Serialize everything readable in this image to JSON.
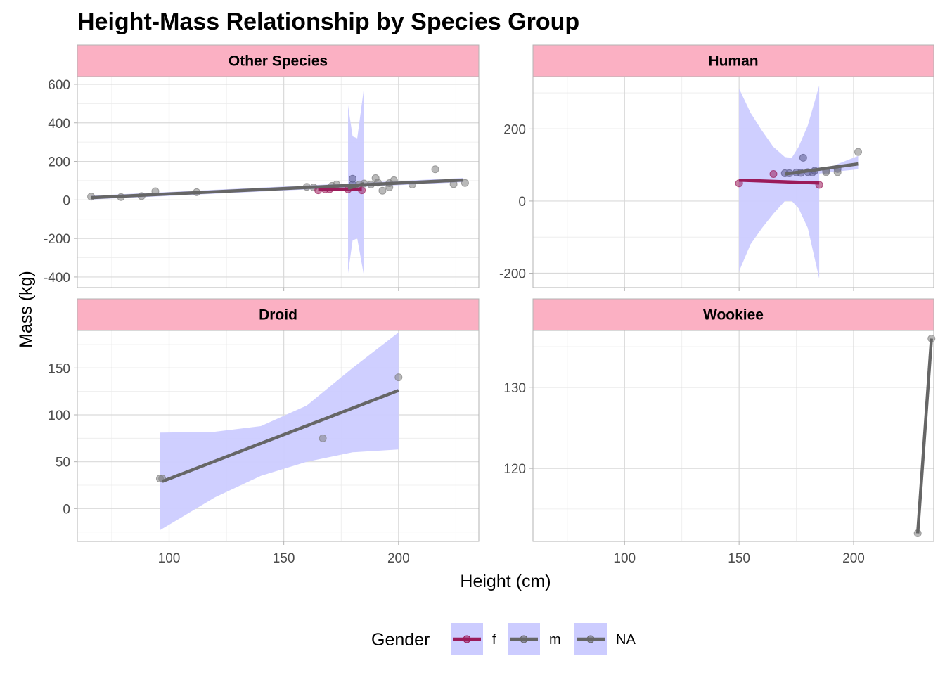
{
  "chart_data": {
    "type": "scatter",
    "title": "Height-Mass Relationship by Species Group",
    "xlabel": "Height (cm)",
    "ylabel": "Mass (kg)",
    "grid": true,
    "legend": {
      "title": "Gender",
      "position": "bottom",
      "entries": [
        {
          "label": "f",
          "color": "#9B1B5A"
        },
        {
          "label": "m",
          "color": "#666666"
        },
        {
          "label": "NA",
          "color": "#666666"
        }
      ],
      "ribbon_color": "#CCCCFF"
    },
    "colors": {
      "f": "#9B1B5A",
      "m": "#666666",
      "NA": "#666666",
      "ribbon": "#CCCCFF",
      "strip": "#FBB0C3",
      "points_f": "#9B1B5A",
      "points_m": "#5A5A8A",
      "points_NA": "#808080"
    },
    "shared_x": {
      "range": [
        60,
        235
      ],
      "ticks": [
        100,
        150,
        200
      ]
    },
    "panels": [
      {
        "name": "Other Species",
        "ylim": [
          -455,
          640
        ],
        "yticks": [
          -400,
          -200,
          0,
          200,
          400,
          600
        ],
        "series": [
          {
            "gender": "m",
            "line": {
              "x": [
                66,
                228
              ],
              "y": [
                12,
                103
              ]
            },
            "ribbon": {
              "x": [
                66,
                228
              ],
              "lower": [
                2,
                92
              ],
              "upper": [
                22,
                114
              ]
            }
          },
          {
            "gender": "f",
            "line": {
              "x": [
                165,
                184
              ],
              "y": [
                55,
                56
              ]
            },
            "ribbon": {
              "x": [
                178,
                180,
                182,
                185
              ],
              "lower": [
                -380,
                -210,
                -200,
                -400
              ],
              "upper": [
                490,
                330,
                320,
                590
              ]
            }
          },
          {
            "gender": "NA",
            "line": {
              "x": [
                178,
                185
              ],
              "y": [
                60,
                84
              ]
            }
          }
        ],
        "points": [
          {
            "x": 66,
            "y": 17,
            "g": "NA"
          },
          {
            "x": 79,
            "y": 15,
            "g": "NA"
          },
          {
            "x": 88,
            "y": 20,
            "g": "NA"
          },
          {
            "x": 94,
            "y": 45,
            "g": "NA"
          },
          {
            "x": 112,
            "y": 40,
            "g": "NA"
          },
          {
            "x": 160,
            "y": 68,
            "g": "NA"
          },
          {
            "x": 163,
            "y": 65,
            "g": "NA"
          },
          {
            "x": 165,
            "y": 50,
            "g": "f"
          },
          {
            "x": 168,
            "y": 55,
            "g": "f"
          },
          {
            "x": 170,
            "y": 56,
            "g": "f"
          },
          {
            "x": 171,
            "y": 73,
            "g": "NA"
          },
          {
            "x": 173,
            "y": 80,
            "g": "NA"
          },
          {
            "x": 178,
            "y": 55,
            "g": "f"
          },
          {
            "x": 180,
            "y": 110,
            "g": "m"
          },
          {
            "x": 180,
            "y": 80,
            "g": "m"
          },
          {
            "x": 183,
            "y": 80,
            "g": "NA"
          },
          {
            "x": 184,
            "y": 50,
            "g": "f"
          },
          {
            "x": 185,
            "y": 85,
            "g": "NA"
          },
          {
            "x": 188,
            "y": 80,
            "g": "NA"
          },
          {
            "x": 190,
            "y": 113,
            "g": "NA"
          },
          {
            "x": 191,
            "y": 90,
            "g": "NA"
          },
          {
            "x": 193,
            "y": 48,
            "g": "NA"
          },
          {
            "x": 196,
            "y": 66,
            "g": "NA"
          },
          {
            "x": 196,
            "y": 87,
            "g": "NA"
          },
          {
            "x": 198,
            "y": 102,
            "g": "NA"
          },
          {
            "x": 206,
            "y": 80,
            "g": "NA"
          },
          {
            "x": 216,
            "y": 159,
            "g": "NA"
          },
          {
            "x": 224,
            "y": 82,
            "g": "NA"
          },
          {
            "x": 229,
            "y": 88,
            "g": "NA"
          }
        ]
      },
      {
        "name": "Human",
        "ylim": [
          -240,
          345
        ],
        "yticks": [
          -200,
          0,
          200
        ],
        "series": [
          {
            "gender": "f",
            "line": {
              "x": [
                150,
                185
              ],
              "y": [
                58,
                50
              ]
            },
            "ribbon": {
              "x": [
                150,
                155,
                160,
                165,
                170,
                173,
                176,
                180,
                185
              ],
              "lower": [
                -195,
                -120,
                -75,
                -35,
                0,
                0,
                -20,
                -75,
                -215
              ],
              "upper": [
                312,
                245,
                195,
                150,
                122,
                120,
                150,
                210,
                320
              ]
            }
          },
          {
            "gender": "m",
            "line": {
              "x": [
                170,
                202
              ],
              "y": [
                75,
                103
              ]
            },
            "ribbon": {
              "x": [
                170,
                180,
                190,
                202
              ],
              "lower": [
                70,
                72,
                80,
                88
              ],
              "upper": [
                80,
                82,
                95,
                125
              ]
            }
          }
        ],
        "points": [
          {
            "x": 150,
            "y": 49,
            "g": "f"
          },
          {
            "x": 165,
            "y": 75,
            "g": "f"
          },
          {
            "x": 170,
            "y": 77,
            "g": "m"
          },
          {
            "x": 172,
            "y": 77,
            "g": "m"
          },
          {
            "x": 175,
            "y": 79,
            "g": "m"
          },
          {
            "x": 177,
            "y": 78,
            "g": "m"
          },
          {
            "x": 178,
            "y": 120,
            "g": "m"
          },
          {
            "x": 180,
            "y": 80,
            "g": "m"
          },
          {
            "x": 182,
            "y": 79,
            "g": "m"
          },
          {
            "x": 183,
            "y": 84,
            "g": "m"
          },
          {
            "x": 185,
            "y": 45,
            "g": "f"
          },
          {
            "x": 188,
            "y": 84,
            "g": "m"
          },
          {
            "x": 188,
            "y": 80,
            "g": "NA"
          },
          {
            "x": 193,
            "y": 89,
            "g": "m"
          },
          {
            "x": 193,
            "y": 80,
            "g": "NA"
          },
          {
            "x": 202,
            "y": 136,
            "g": "NA"
          }
        ]
      },
      {
        "name": "Droid",
        "ylim": [
          -35,
          190
        ],
        "yticks": [
          0,
          50,
          100,
          150
        ],
        "series": [
          {
            "gender": "NA",
            "line": {
              "x": [
                97,
                200
              ],
              "y": [
                29,
                126
              ]
            },
            "ribbon": {
              "x": [
                96,
                120,
                140,
                160,
                180,
                200
              ],
              "lower": [
                -23,
                12,
                35,
                50,
                60,
                63
              ],
              "upper": [
                81,
                82,
                88,
                110,
                150,
                188
              ]
            }
          }
        ],
        "points": [
          {
            "x": 96,
            "y": 32,
            "g": "NA"
          },
          {
            "x": 97,
            "y": 32,
            "g": "NA"
          },
          {
            "x": 167,
            "y": 75,
            "g": "NA"
          },
          {
            "x": 200,
            "y": 140,
            "g": "NA"
          }
        ]
      },
      {
        "name": "Wookiee",
        "ylim": [
          111,
          137
        ],
        "yticks": [
          120,
          130
        ],
        "series": [
          {
            "gender": "m",
            "line": {
              "x": [
                228,
                234
              ],
              "y": [
                112,
                136
              ]
            }
          }
        ],
        "points": [
          {
            "x": 228,
            "y": 112,
            "g": "NA"
          },
          {
            "x": 234,
            "y": 136,
            "g": "NA"
          }
        ]
      }
    ]
  }
}
